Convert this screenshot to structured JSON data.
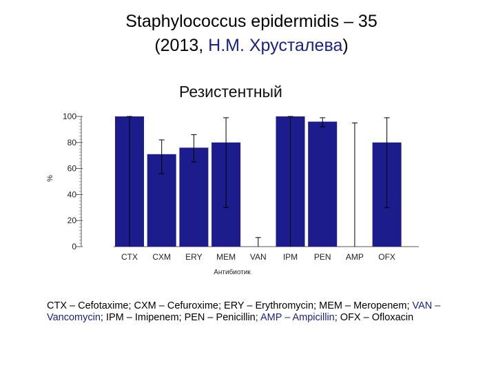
{
  "title": {
    "line1": "Staphylococcus epidermidis – 35",
    "line2_open": "(2013, ",
    "line2_author": "Н.М. Хрусталева",
    "line2_close": ")"
  },
  "chart_data": {
    "type": "bar",
    "title": "Резистентный",
    "xlabel": "Антибиотик",
    "ylabel": "%",
    "ylim": [
      0,
      100
    ],
    "yticks": [
      0,
      20,
      40,
      60,
      80,
      100
    ],
    "categories": [
      "CTX",
      "CXM",
      "ERY",
      "MEM",
      "VAN",
      "IPM",
      "PEN",
      "AMP",
      "OFX"
    ],
    "values": [
      100,
      71,
      76,
      80,
      0,
      100,
      96,
      0,
      80
    ],
    "error_low": [
      0,
      56,
      65,
      30,
      0,
      0,
      92,
      0,
      30
    ],
    "error_high": [
      100,
      82,
      86,
      99,
      7,
      100,
      99,
      95,
      99
    ],
    "bar_color": "#1c1c8c",
    "grid": false
  },
  "legend": {
    "part1": "CTX – Cefotaxime;  CXM – Cefuroxime; ERY – Erythromycin; MEM – Meropenem;",
    "part2_blue": "VAN – Vancomycin",
    "part3": "; IPM – Imipenem; PEN – Penicillin",
    "part4_blue": ";  AMP – Ampicillin",
    "part5": "; OFX –",
    "part6": "Ofloxacin"
  }
}
